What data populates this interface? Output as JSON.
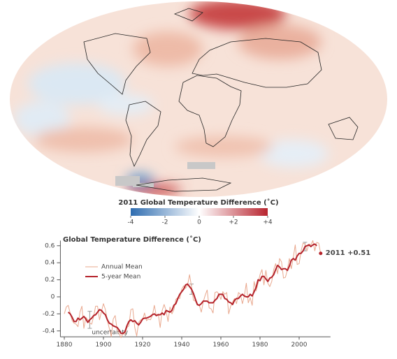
{
  "chart_data": [
    {
      "type": "map",
      "title": "2011 Global Temperature Difference (˚C)",
      "clim": [
        -4,
        4
      ],
      "cticks": [
        -4,
        -2,
        0,
        {
          "value": 2,
          "label": "+2"
        },
        {
          "value": 4,
          "label": "+4"
        }
      ],
      "colormap": [
        "#2f6db0",
        "#ffffff",
        "#b8242f"
      ]
    },
    {
      "type": "line",
      "title": "Global Temperature Difference (˚C)",
      "x": [
        1880,
        1881,
        1882,
        1883,
        1884,
        1885,
        1886,
        1887,
        1888,
        1889,
        1890,
        1891,
        1892,
        1893,
        1894,
        1895,
        1896,
        1897,
        1898,
        1899,
        1900,
        1901,
        1902,
        1903,
        1904,
        1905,
        1906,
        1907,
        1908,
        1909,
        1910,
        1911,
        1912,
        1913,
        1914,
        1915,
        1916,
        1917,
        1918,
        1919,
        1920,
        1921,
        1922,
        1923,
        1924,
        1925,
        1926,
        1927,
        1928,
        1929,
        1930,
        1931,
        1932,
        1933,
        1934,
        1935,
        1936,
        1937,
        1938,
        1939,
        1940,
        1941,
        1942,
        1943,
        1944,
        1945,
        1946,
        1947,
        1948,
        1949,
        1950,
        1951,
        1952,
        1953,
        1954,
        1955,
        1956,
        1957,
        1958,
        1959,
        1960,
        1961,
        1962,
        1963,
        1964,
        1965,
        1966,
        1967,
        1968,
        1969,
        1970,
        1971,
        1972,
        1973,
        1974,
        1975,
        1976,
        1977,
        1978,
        1979,
        1980,
        1981,
        1982,
        1983,
        1984,
        1985,
        1986,
        1987,
        1988,
        1989,
        1990,
        1991,
        1992,
        1993,
        1994,
        1995,
        1996,
        1997,
        1998,
        1999,
        2000,
        2001,
        2002,
        2003,
        2004,
        2005,
        2006,
        2007,
        2008,
        2009,
        2010,
        2011
      ],
      "series": [
        {
          "name": "Annual Mean",
          "color": "#e9a88e",
          "values": [
            -0.2,
            -0.12,
            -0.1,
            -0.19,
            -0.28,
            -0.31,
            -0.32,
            -0.35,
            -0.18,
            -0.11,
            -0.37,
            -0.24,
            -0.27,
            -0.31,
            -0.32,
            -0.23,
            -0.11,
            -0.11,
            -0.27,
            -0.17,
            -0.08,
            -0.15,
            -0.28,
            -0.37,
            -0.47,
            -0.26,
            -0.22,
            -0.39,
            -0.43,
            -0.48,
            -0.43,
            -0.44,
            -0.36,
            -0.34,
            -0.15,
            -0.14,
            -0.36,
            -0.46,
            -0.3,
            -0.27,
            -0.27,
            -0.19,
            -0.28,
            -0.26,
            -0.27,
            -0.22,
            -0.1,
            -0.22,
            -0.2,
            -0.36,
            -0.16,
            -0.09,
            -0.16,
            -0.29,
            -0.12,
            -0.2,
            -0.15,
            -0.03,
            -0.01,
            -0.02,
            0.09,
            0.13,
            0.1,
            0.14,
            0.26,
            0.12,
            -0.04,
            -0.05,
            -0.1,
            -0.1,
            -0.18,
            -0.06,
            0.02,
            0.08,
            -0.13,
            -0.14,
            -0.19,
            0.05,
            0.06,
            0.03,
            -0.03,
            0.06,
            0.03,
            0.05,
            -0.2,
            -0.11,
            -0.06,
            -0.02,
            -0.08,
            0.05,
            0.03,
            -0.08,
            0.01,
            0.16,
            -0.07,
            -0.01,
            -0.1,
            0.18,
            0.07,
            0.16,
            0.26,
            0.32,
            0.14,
            0.31,
            0.16,
            0.12,
            0.18,
            0.32,
            0.39,
            0.27,
            0.45,
            0.41,
            0.22,
            0.23,
            0.32,
            0.45,
            0.33,
            0.46,
            0.61,
            0.38,
            0.39,
            0.54,
            0.63,
            0.62,
            0.54,
            0.62,
            0.61,
            0.66,
            0.54,
            0.64,
            0.63,
            0.51
          ]
        },
        {
          "name": "5-year Mean",
          "color": "#b5232b",
          "values": [
            null,
            null,
            -0.18,
            -0.2,
            -0.24,
            -0.29,
            -0.29,
            -0.25,
            -0.27,
            -0.25,
            -0.23,
            -0.26,
            -0.3,
            -0.27,
            -0.25,
            -0.22,
            -0.21,
            -0.18,
            -0.15,
            -0.16,
            -0.19,
            -0.21,
            -0.27,
            -0.31,
            -0.32,
            -0.34,
            -0.35,
            -0.36,
            -0.39,
            -0.43,
            -0.43,
            -0.41,
            -0.34,
            -0.29,
            -0.27,
            -0.29,
            -0.28,
            -0.31,
            -0.33,
            -0.3,
            -0.26,
            -0.25,
            -0.25,
            -0.24,
            -0.23,
            -0.21,
            -0.2,
            -0.22,
            -0.21,
            -0.21,
            -0.19,
            -0.21,
            -0.16,
            -0.17,
            -0.18,
            -0.16,
            -0.1,
            -0.08,
            -0.02,
            0.03,
            0.06,
            0.09,
            0.14,
            0.15,
            0.12,
            0.09,
            0.04,
            -0.03,
            -0.09,
            -0.1,
            -0.08,
            -0.05,
            -0.05,
            -0.05,
            -0.07,
            -0.07,
            -0.07,
            -0.04,
            -0.02,
            0.03,
            0.03,
            0.03,
            -0.02,
            -0.03,
            -0.06,
            -0.07,
            -0.09,
            -0.04,
            -0.02,
            -0.02,
            0.01,
            0.03,
            0.01,
            0,
            0,
            0.03,
            0.01,
            0.06,
            0.11,
            0.2,
            0.19,
            0.24,
            0.24,
            0.21,
            0.18,
            0.22,
            0.23,
            0.26,
            0.32,
            0.37,
            0.35,
            0.32,
            0.33,
            0.33,
            0.31,
            0.36,
            0.43,
            0.45,
            0.43,
            0.48,
            0.51,
            0.51,
            0.54,
            0.59,
            0.6,
            0.61,
            0.59,
            0.61,
            0.62,
            0.6,
            null,
            null
          ]
        }
      ],
      "annotation": {
        "x": 2011,
        "value": 0.51,
        "label": "2011 +0.51"
      },
      "uncertainty": {
        "label": "uncertainty",
        "x": [
          1893,
          1945,
          2003
        ],
        "errors": [
          0.1,
          0.06,
          0.05
        ]
      },
      "xlim": [
        1878,
        2016
      ],
      "xticks": [
        1880,
        1900,
        1920,
        1940,
        1960,
        1980,
        2000
      ],
      "ylim": [
        -0.47,
        0.66
      ],
      "yticks": [
        0.6,
        0.4,
        0.2,
        0,
        -0.2,
        -0.4
      ],
      "legend": "upper-left"
    }
  ]
}
